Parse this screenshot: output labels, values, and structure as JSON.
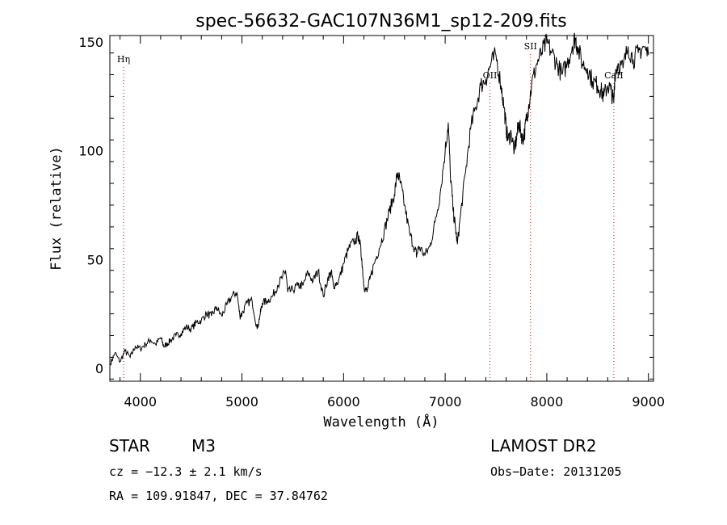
{
  "chart_data": {
    "type": "line",
    "title": "spec-56632-GAC107N36M1_sp12-209.fits",
    "xlabel": "Wavelength (Å)",
    "ylabel": "Flux (relative)",
    "xlim": [
      3700,
      9050
    ],
    "ylim": [
      -6,
      153
    ],
    "x_ticks": [
      4000,
      5000,
      6000,
      7000,
      8000,
      9000
    ],
    "y_ticks": [
      0,
      50,
      100,
      150
    ],
    "grid": false,
    "line_color": "#000000",
    "marker_color": "#cc0000",
    "spectral_lines": [
      {
        "label": "Hη",
        "wavelength": 3835
      },
      {
        "label": "OII",
        "wavelength": 7440
      },
      {
        "label": "SII",
        "wavelength": 7840
      },
      {
        "label": "CaII",
        "wavelength": 8660
      }
    ],
    "series": [
      {
        "x": [
          3705,
          3750,
          3800,
          3850,
          3900,
          3950,
          4000,
          4050,
          4100,
          4150,
          4200,
          4230,
          4260,
          4300,
          4350,
          4400,
          4450,
          4500,
          4550,
          4600,
          4650,
          4700,
          4750,
          4800,
          4850,
          4900,
          4950,
          4980,
          5000,
          5050,
          5100,
          5150,
          5180,
          5200,
          5250,
          5300,
          5350,
          5400,
          5430,
          5450,
          5500,
          5550,
          5600,
          5650,
          5700,
          5750,
          5800,
          5850,
          5880,
          5900,
          5950,
          6000,
          6050,
          6100,
          6150,
          6180,
          6200,
          6230,
          6260,
          6300,
          6350,
          6400,
          6450,
          6500,
          6530,
          6560,
          6600,
          6650,
          6700,
          6720,
          6740,
          6800,
          6850,
          6900,
          6950,
          7000,
          7030,
          7050,
          7080,
          7100,
          7120,
          7150,
          7200,
          7250,
          7300,
          7350,
          7400,
          7450,
          7500,
          7550,
          7580,
          7600,
          7620,
          7650,
          7680,
          7700,
          7720,
          7740,
          7760,
          7780,
          7800,
          7820,
          7850,
          7900,
          7950,
          8000,
          8050,
          8100,
          8150,
          8200,
          8250,
          8280,
          8300,
          8350,
          8400,
          8450,
          8500,
          8530,
          8560,
          8600,
          8630,
          8660,
          8670,
          8700,
          8750,
          8800,
          8850,
          8900,
          8950,
          9000
        ],
        "y": [
          2,
          7,
          3,
          8,
          5,
          10,
          9,
          11,
          13,
          11,
          14,
          10,
          11,
          13,
          15,
          16,
          19,
          18,
          21,
          22,
          25,
          24,
          28,
          24,
          29,
          33,
          35,
          24,
          25,
          30,
          31,
          18,
          25,
          30,
          31,
          33,
          38,
          42,
          45,
          35,
          36,
          38,
          38,
          44,
          40,
          45,
          33,
          42,
          44,
          38,
          40,
          48,
          55,
          58,
          61,
          50,
          38,
          35,
          41,
          48,
          55,
          63,
          72,
          80,
          90,
          85,
          75,
          62,
          55,
          52,
          56,
          52,
          56,
          67,
          80,
          100,
          113,
          90,
          72,
          65,
          57,
          70,
          90,
          110,
          120,
          130,
          133,
          140,
          144,
          130,
          120,
          110,
          105,
          108,
          100,
          105,
          112,
          110,
          105,
          108,
          115,
          120,
          130,
          140,
          145,
          150,
          145,
          140,
          135,
          140,
          148,
          152,
          148,
          140,
          138,
          132,
          130,
          128,
          125,
          130,
          128,
          122,
          136,
          140,
          138,
          148,
          142,
          145,
          148,
          144
        ]
      }
    ]
  },
  "info": {
    "object_class": "STAR",
    "subclass": "M3",
    "survey": "LAMOST DR2",
    "redshift": "cz = −12.3 ± 2.1 km/s",
    "obs_date": "Obs−Date: 20131205",
    "coords": "RA = 109.91847, DEC =  37.84762"
  }
}
